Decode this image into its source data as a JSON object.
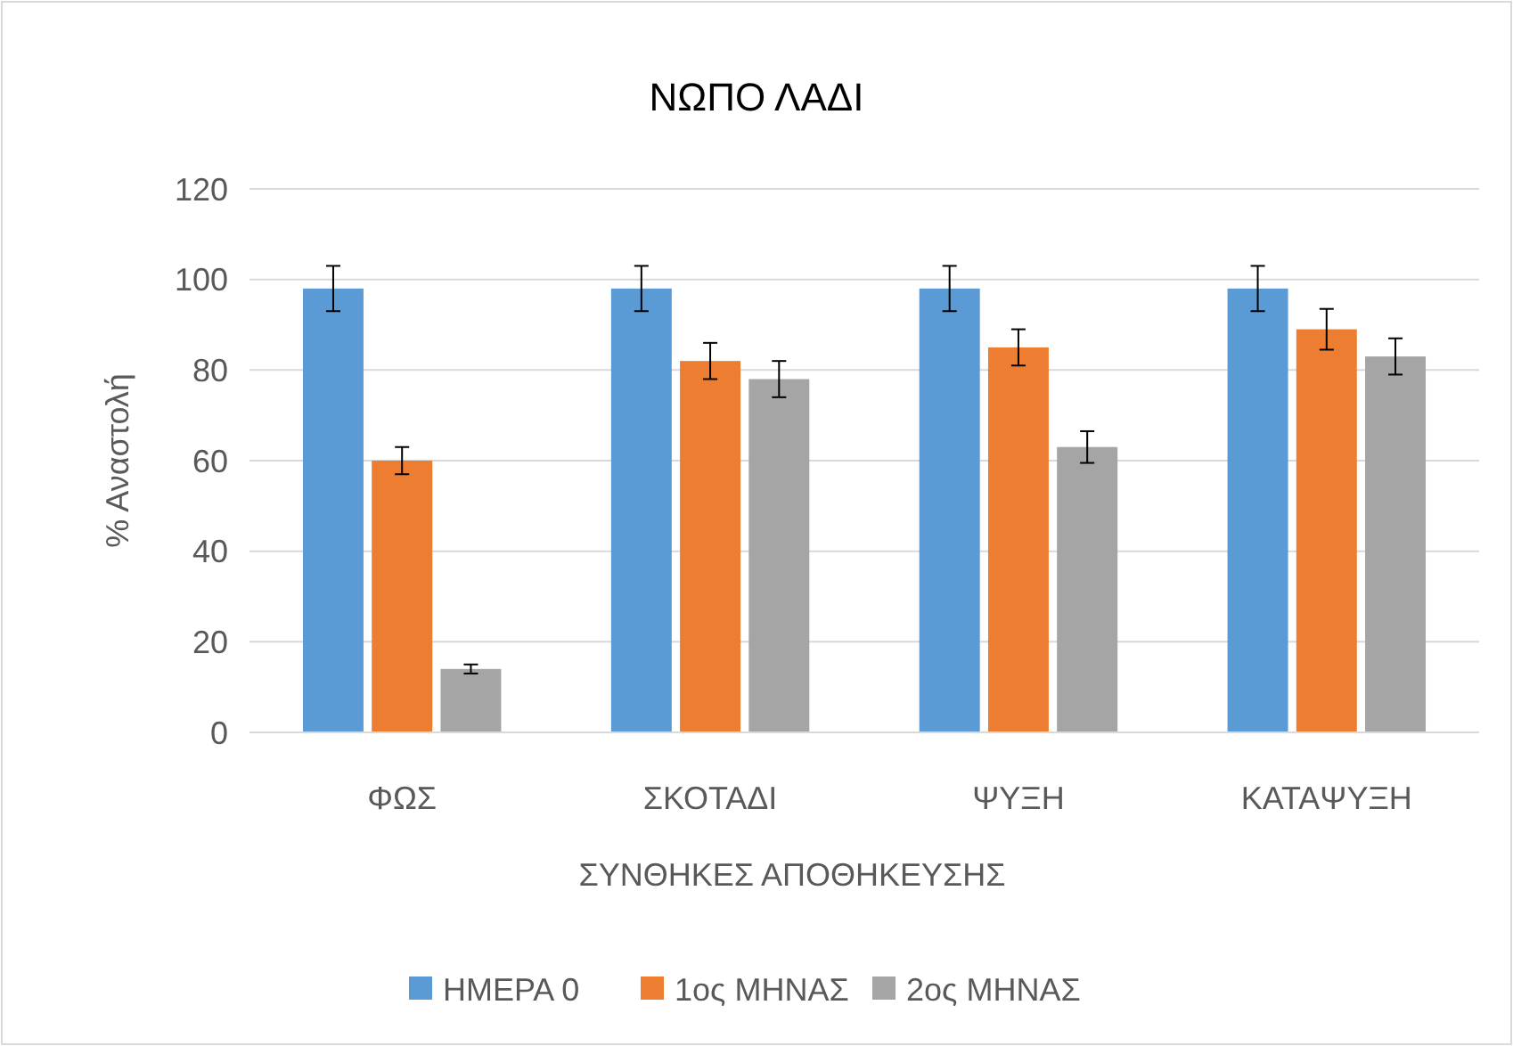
{
  "chart_data": {
    "type": "bar",
    "title": "ΝΩΠΟ ΛΑΔΙ",
    "xlabel": "ΣΥΝΘΗΚΕΣ ΑΠΟΘΗΚΕΥΣΗΣ",
    "ylabel": "% Αναστολή",
    "categories": [
      "ΦΩΣ",
      "ΣΚΟΤΑΔΙ",
      "ΨΥΞΗ",
      "ΚΑΤΑΨΥΞΗ"
    ],
    "series": [
      {
        "name": "ΗΜΕΡΑ 0",
        "color": "#5b9bd5",
        "values": [
          98,
          98,
          98,
          98
        ],
        "errors": [
          5,
          5,
          5,
          5
        ]
      },
      {
        "name": "1ος ΜΗΝΑΣ",
        "color": "#ed7d31",
        "values": [
          60,
          82,
          85,
          89
        ],
        "errors": [
          3,
          4,
          4,
          4.5
        ]
      },
      {
        "name": "2ος ΜΗΝΑΣ",
        "color": "#a5a5a5",
        "values": [
          14,
          78,
          63,
          83
        ],
        "errors": [
          1,
          4,
          3.5,
          4
        ]
      }
    ],
    "ylim": [
      0,
      120
    ],
    "yticks": [
      0,
      20,
      40,
      60,
      80,
      100,
      120
    ],
    "grid": "y",
    "legend": "bottom"
  }
}
